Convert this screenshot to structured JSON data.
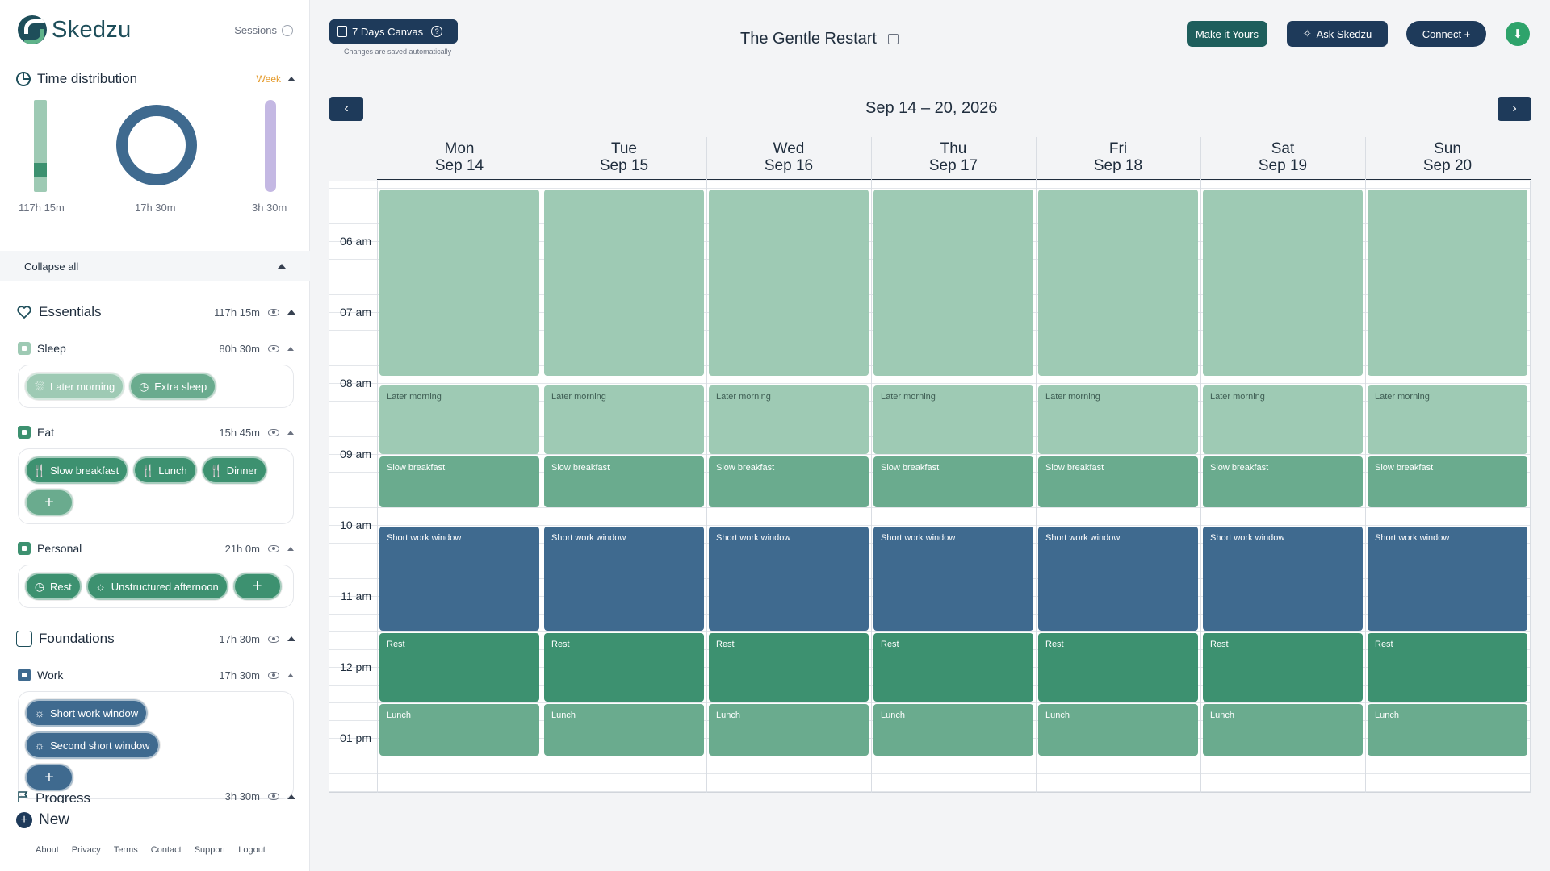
{
  "app": {
    "name": "Skedzu"
  },
  "sidebar": {
    "sessions_label": "Sessions",
    "time_distribution": {
      "title": "Time distribution",
      "period": "Week",
      "bars": [
        {
          "label": "117h 15m",
          "color": "#9ecab4"
        },
        {
          "label": "17h 30m",
          "color": "#3f6a8f"
        },
        {
          "label": "3h 30m",
          "color": "#c4b8e3"
        }
      ]
    },
    "collapse_all": "Collapse all",
    "sections": [
      {
        "title": "Essentials",
        "total": "117h 15m",
        "categories": [
          {
            "name": "Sleep",
            "total": "80h 30m",
            "color": "#9ecab4",
            "chips": [
              {
                "label": "Later morning",
                "icon": "shower-icon"
              },
              {
                "label": "Extra sleep",
                "icon": "clock-icon"
              }
            ]
          },
          {
            "name": "Eat",
            "total": "15h 45m",
            "color": "#3d9170",
            "chips": [
              {
                "label": "Slow breakfast",
                "icon": "fork-knife-icon"
              },
              {
                "label": "Lunch",
                "icon": "fork-knife-icon"
              },
              {
                "label": "Dinner",
                "icon": "fork-knife-icon"
              }
            ]
          },
          {
            "name": "Personal",
            "total": "21h 0m",
            "color": "#3d9170",
            "chips": [
              {
                "label": "Rest",
                "icon": "clock-icon"
              },
              {
                "label": "Unstructured afternoon",
                "icon": "lamp-icon"
              }
            ]
          }
        ]
      },
      {
        "title": "Foundations",
        "total": "17h 30m",
        "categories": [
          {
            "name": "Work",
            "total": "17h 30m",
            "color": "#3f6a8f",
            "chips": [
              {
                "label": "Short work window",
                "icon": "lamp-icon"
              },
              {
                "label": "Second short window",
                "icon": "lamp-icon"
              }
            ]
          }
        ]
      },
      {
        "title": "Progress",
        "total": "3h 30m"
      }
    ],
    "new_label": "New",
    "footer": [
      "About",
      "Privacy",
      "Terms",
      "Contact",
      "Support",
      "Logout"
    ]
  },
  "topbar": {
    "canvas_label": "7 Days Canvas",
    "saved_note": "Changes are saved automatically",
    "title": "The Gentle Restart",
    "make_it_yours": "Make it Yours",
    "ask_skedzu": "Ask Skedzu",
    "connect": "Connect +",
    "colors": {
      "make_it_yours": "#1e5e5c",
      "ask": "#1e3a5a",
      "connect": "#1e3a5a",
      "download": "#2ea36b"
    }
  },
  "calendar": {
    "range": "Sep 14 – 20, 2026",
    "days": [
      {
        "dow": "Mon",
        "date": "Sep 14"
      },
      {
        "dow": "Tue",
        "date": "Sep 15"
      },
      {
        "dow": "Wed",
        "date": "Sep 16"
      },
      {
        "dow": "Thu",
        "date": "Sep 17"
      },
      {
        "dow": "Fri",
        "date": "Sep 18"
      },
      {
        "dow": "Sat",
        "date": "Sep 19"
      },
      {
        "dow": "Sun",
        "date": "Sep 20"
      }
    ],
    "time_labels": [
      "06 am",
      "07 am",
      "08 am",
      "09 am",
      "10 am",
      "11 am",
      "12 pm",
      "01 pm"
    ],
    "events": [
      {
        "type": "sleep",
        "label": ""
      },
      {
        "type": "later",
        "label": "Later morning"
      },
      {
        "type": "breakfast",
        "label": "Slow breakfast"
      },
      {
        "type": "work",
        "label": "Short work window"
      },
      {
        "type": "rest",
        "label": "Rest"
      },
      {
        "type": "lunch",
        "label": "Lunch"
      }
    ]
  }
}
